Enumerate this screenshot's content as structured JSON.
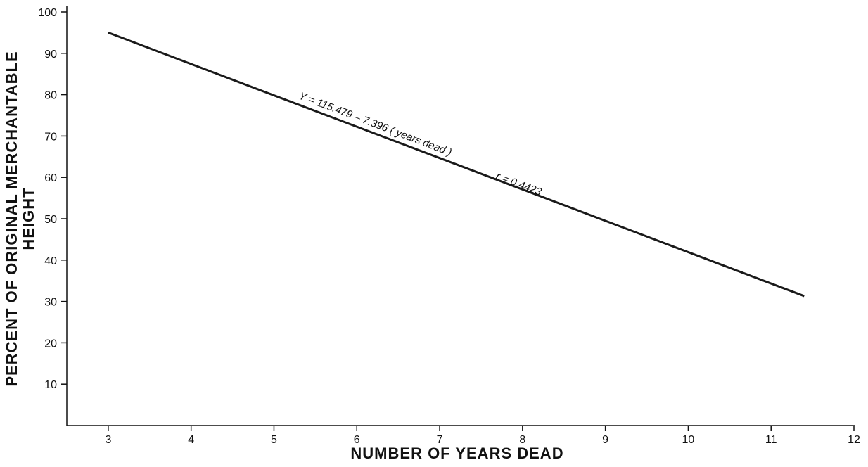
{
  "chart_data": {
    "type": "line",
    "x_label": "NUMBER OF YEARS DEAD",
    "y_label": [
      "PERCENT OF ORIGINAL MERCHANTABLE",
      "HEIGHT"
    ],
    "annotations": [
      "Y = 115.479 – 7.396 ( years dead )",
      "r = 0.4423"
    ],
    "x": [
      3,
      11.4
    ],
    "series": [
      {
        "color": "#1a1a1a",
        "values": [
          95,
          31.3
        ]
      }
    ],
    "xlim": [
      2.5,
      12
    ],
    "xticks": [
      3,
      4,
      5,
      6,
      7,
      8,
      9,
      10,
      11,
      12
    ],
    "ylim": [
      0,
      100
    ],
    "yticks": [
      10,
      20,
      30,
      40,
      50,
      60,
      70,
      80,
      90,
      100
    ],
    "grid": false
  }
}
